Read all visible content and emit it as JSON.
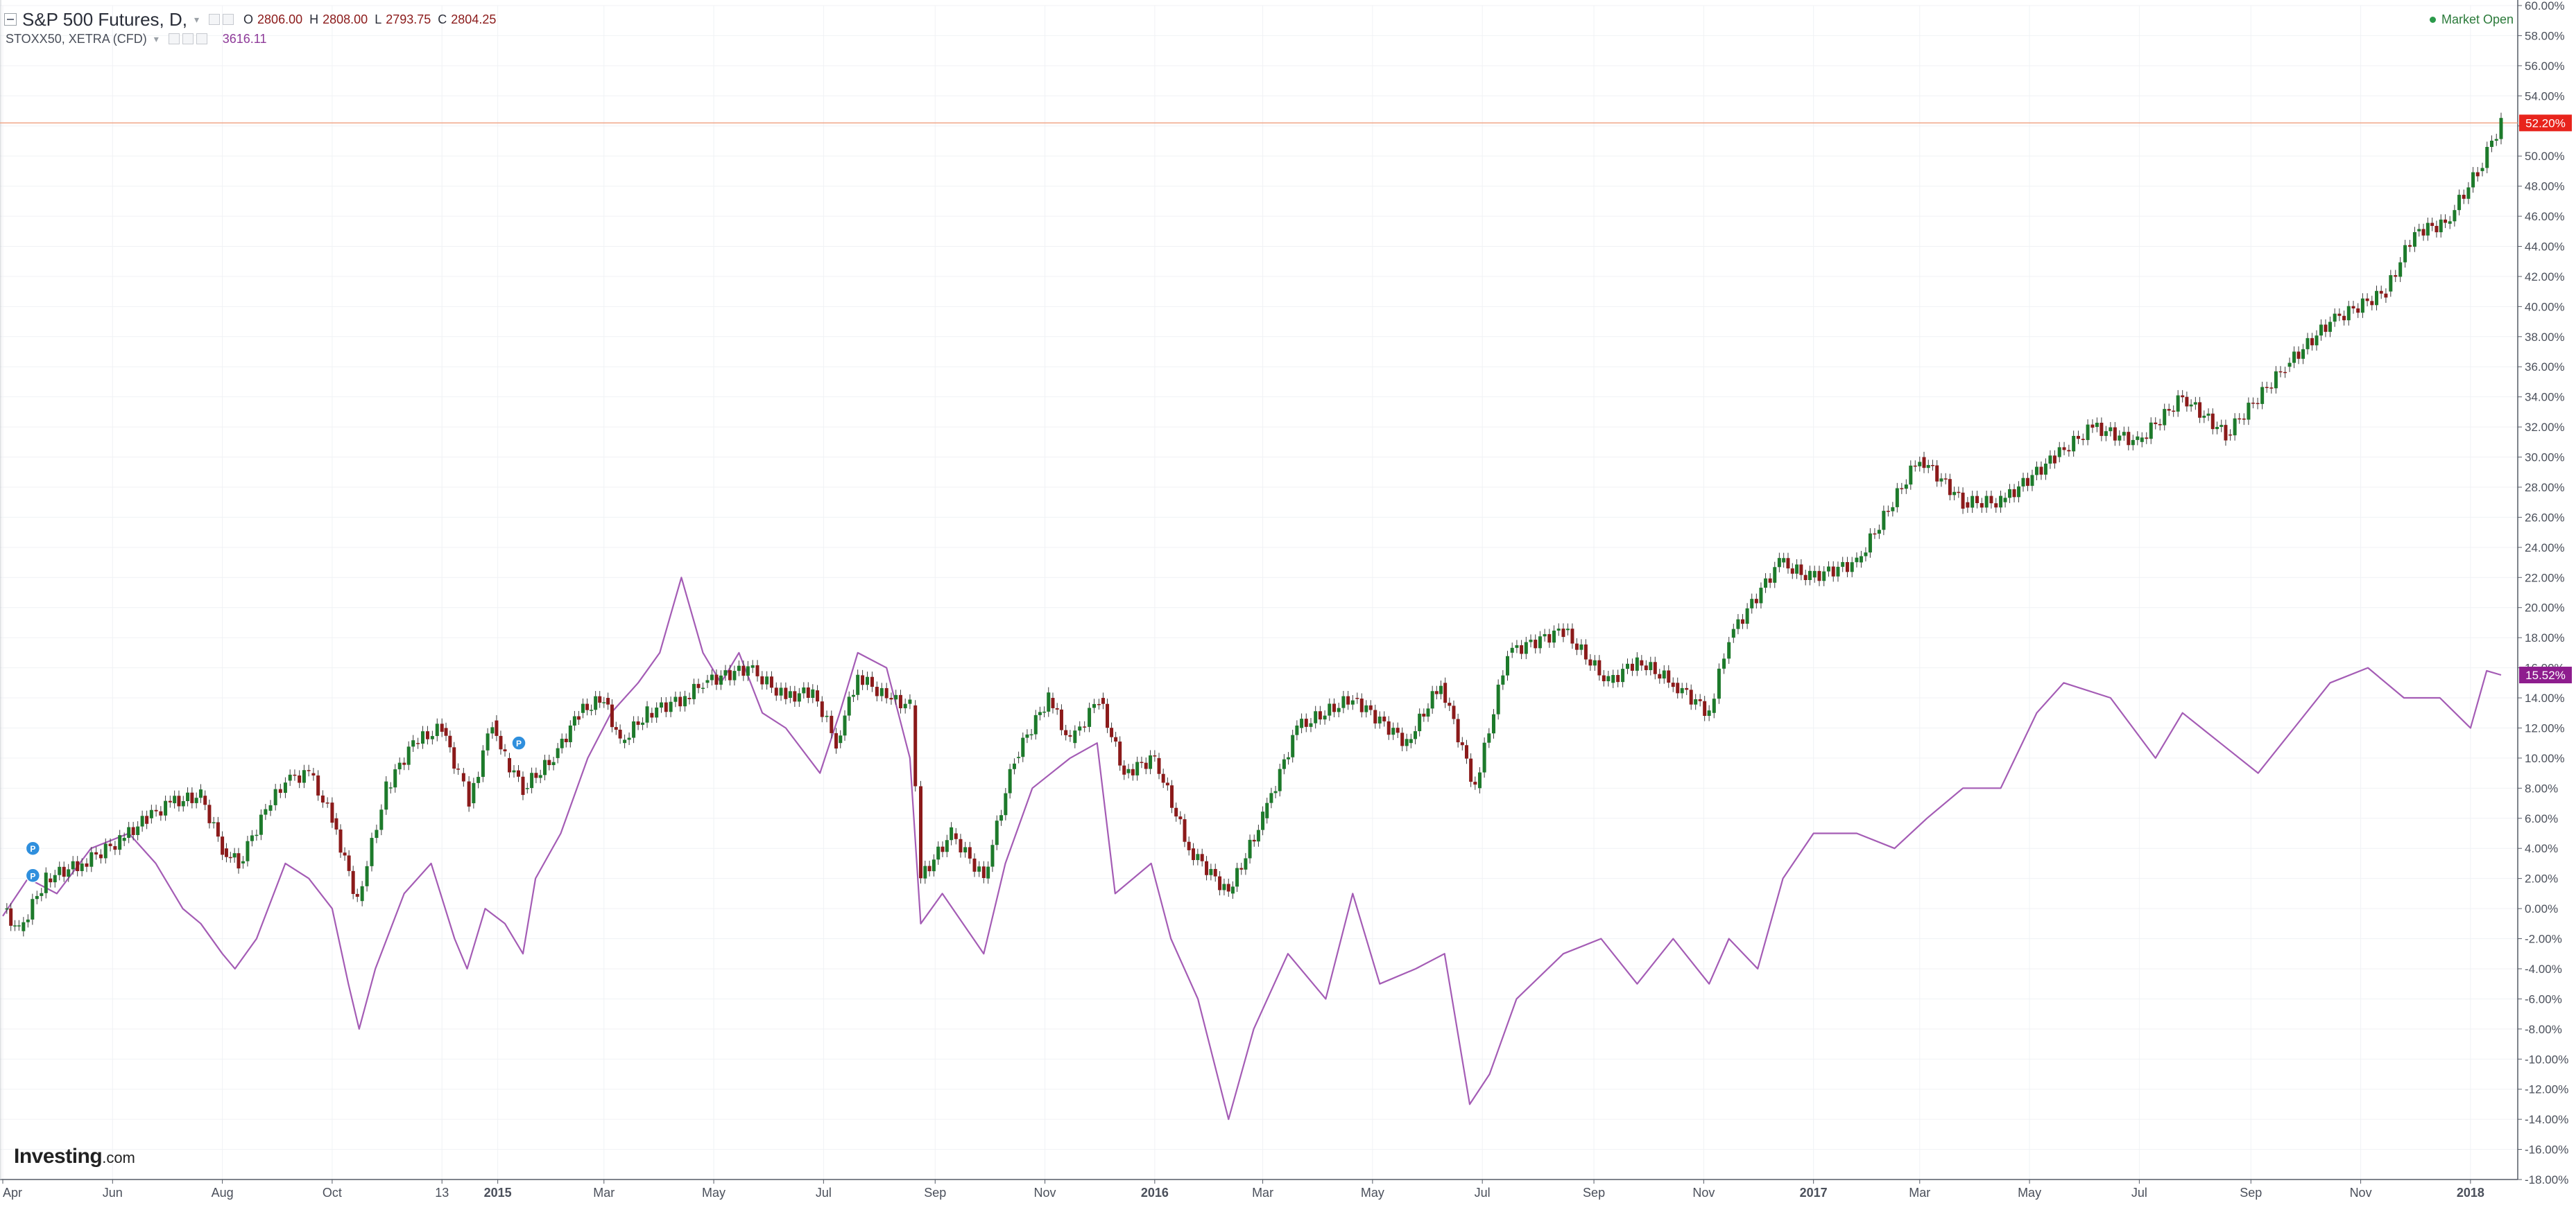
{
  "header": {
    "title": "S&P 500 Futures, D,",
    "ohlc": [
      {
        "label": "O",
        "value": "2806.00"
      },
      {
        "label": "H",
        "value": "2808.00"
      },
      {
        "label": "L",
        "value": "2793.75"
      },
      {
        "label": "C",
        "value": "2804.25"
      }
    ],
    "compare_title": "STOXX50, XETRA (CFD)",
    "compare_value": "3616.11",
    "market_status": "Market Open"
  },
  "logo": {
    "main": "Investing",
    "domain": ".com"
  },
  "colors": {
    "up": "#1d7a2b",
    "down": "#8b1a1a",
    "compare_line": "#a45cb5",
    "last_price_bg": "#e8241c",
    "compare_label_bg": "#8e1d8e",
    "price_line": "#f0a587",
    "grid": "#f0f2f5"
  },
  "chart_data": {
    "type": "line",
    "title": "S&P 500 Futures, D,",
    "y_axis": {
      "unit": "%",
      "range": [
        -18,
        60
      ],
      "ticks": [
        "60.00%",
        "58.00%",
        "56.00%",
        "54.00%",
        "52.00%",
        "50.00%",
        "48.00%",
        "46.00%",
        "44.00%",
        "42.00%",
        "40.00%",
        "38.00%",
        "36.00%",
        "34.00%",
        "32.00%",
        "30.00%",
        "28.00%",
        "26.00%",
        "24.00%",
        "22.00%",
        "20.00%",
        "18.00%",
        "16.00%",
        "14.00%",
        "12.00%",
        "10.00%",
        "8.00%",
        "6.00%",
        "4.00%",
        "2.00%",
        "0.00%",
        "-2.00%",
        "-4.00%",
        "-6.00%",
        "-8.00%",
        "-10.00%",
        "-12.00%",
        "-14.00%",
        "-16.00%",
        "-18.00%"
      ]
    },
    "x_axis": {
      "range": [
        "2014-04-01",
        "2018-01-18"
      ],
      "ticks": [
        {
          "label": "Apr",
          "date": "2014-04-01",
          "bold": false
        },
        {
          "label": "Jun",
          "date": "2014-06-01",
          "bold": false
        },
        {
          "label": "Aug",
          "date": "2014-08-01",
          "bold": false
        },
        {
          "label": "Oct",
          "date": "2014-10-01",
          "bold": false
        },
        {
          "label": "13",
          "date": "2014-12-01",
          "bold": false
        },
        {
          "label": "2015",
          "date": "2015-01-01",
          "bold": true
        },
        {
          "label": "Mar",
          "date": "2015-03-01",
          "bold": false
        },
        {
          "label": "May",
          "date": "2015-05-01",
          "bold": false
        },
        {
          "label": "Jul",
          "date": "2015-07-01",
          "bold": false
        },
        {
          "label": "Sep",
          "date": "2015-09-01",
          "bold": false
        },
        {
          "label": "Nov",
          "date": "2015-11-01",
          "bold": false
        },
        {
          "label": "2016",
          "date": "2016-01-01",
          "bold": true
        },
        {
          "label": "Mar",
          "date": "2016-03-01",
          "bold": false
        },
        {
          "label": "May",
          "date": "2016-05-01",
          "bold": false
        },
        {
          "label": "Jul",
          "date": "2016-07-01",
          "bold": false
        },
        {
          "label": "Sep",
          "date": "2016-09-01",
          "bold": false
        },
        {
          "label": "Nov",
          "date": "2016-11-01",
          "bold": false
        },
        {
          "label": "2017",
          "date": "2017-01-01",
          "bold": true
        },
        {
          "label": "Mar",
          "date": "2017-03-01",
          "bold": false
        },
        {
          "label": "May",
          "date": "2017-05-01",
          "bold": false
        },
        {
          "label": "Jul",
          "date": "2017-07-01",
          "bold": false
        },
        {
          "label": "Sep",
          "date": "2017-09-01",
          "bold": false
        },
        {
          "label": "Nov",
          "date": "2017-11-01",
          "bold": false
        },
        {
          "label": "2018",
          "date": "2018-01-01",
          "bold": true
        }
      ]
    },
    "last_value_label": "52.20%",
    "last_value": 52.2,
    "compare_value_label": "15.52%",
    "compare_last_value": 15.52,
    "event_markers": [
      {
        "label": "P",
        "date": "2014-04-10",
        "y": 4.0
      },
      {
        "label": "P",
        "date": "2014-04-10",
        "y": 2.2
      },
      {
        "label": "P",
        "date": "2015-01-05",
        "y": 11.0
      }
    ],
    "series": [
      {
        "name": "S&P 500 Futures",
        "style": "candlestick",
        "points": [
          [
            "2014-04-01",
            0
          ],
          [
            "2014-04-10",
            -1.5
          ],
          [
            "2014-04-25",
            2
          ],
          [
            "2014-05-15",
            3
          ],
          [
            "2014-06-05",
            4.5
          ],
          [
            "2014-06-20",
            6
          ],
          [
            "2014-07-03",
            7
          ],
          [
            "2014-07-20",
            7.5
          ],
          [
            "2014-08-01",
            4
          ],
          [
            "2014-08-10",
            3
          ],
          [
            "2014-08-25",
            6.5
          ],
          [
            "2014-09-05",
            8.5
          ],
          [
            "2014-09-18",
            9
          ],
          [
            "2014-10-01",
            6
          ],
          [
            "2014-10-15",
            0.5
          ],
          [
            "2014-10-31",
            8
          ],
          [
            "2014-11-15",
            11
          ],
          [
            "2014-12-01",
            12
          ],
          [
            "2014-12-10",
            9
          ],
          [
            "2014-12-16",
            7
          ],
          [
            "2014-12-29",
            12.5
          ],
          [
            "2015-01-05",
            10
          ],
          [
            "2015-01-15",
            8
          ],
          [
            "2015-02-01",
            10
          ],
          [
            "2015-02-15",
            13
          ],
          [
            "2015-03-01",
            14
          ],
          [
            "2015-03-10",
            11
          ],
          [
            "2015-03-25",
            13
          ],
          [
            "2015-04-15",
            14
          ],
          [
            "2015-04-25",
            15
          ],
          [
            "2015-05-20",
            16
          ],
          [
            "2015-06-10",
            14
          ],
          [
            "2015-06-25",
            14.5
          ],
          [
            "2015-07-08",
            11
          ],
          [
            "2015-07-20",
            15.5
          ],
          [
            "2015-08-05",
            14
          ],
          [
            "2015-08-18",
            13.5
          ],
          [
            "2015-08-24",
            2
          ],
          [
            "2015-09-10",
            5
          ],
          [
            "2015-09-28",
            2
          ],
          [
            "2015-10-15",
            10
          ],
          [
            "2015-11-03",
            14
          ],
          [
            "2015-11-15",
            11
          ],
          [
            "2015-12-01",
            14
          ],
          [
            "2015-12-15",
            9
          ],
          [
            "2016-01-01",
            10
          ],
          [
            "2016-01-20",
            4
          ],
          [
            "2016-02-11",
            1
          ],
          [
            "2016-03-01",
            6
          ],
          [
            "2016-03-20",
            12
          ],
          [
            "2016-04-20",
            14
          ],
          [
            "2016-05-20",
            11
          ],
          [
            "2016-06-08",
            15
          ],
          [
            "2016-06-27",
            8
          ],
          [
            "2016-07-15",
            17
          ],
          [
            "2016-08-15",
            18.5
          ],
          [
            "2016-09-09",
            15
          ],
          [
            "2016-09-25",
            16.5
          ],
          [
            "2016-10-15",
            15
          ],
          [
            "2016-11-04",
            13
          ],
          [
            "2016-11-15",
            18
          ],
          [
            "2016-12-13",
            23
          ],
          [
            "2016-12-30",
            22
          ],
          [
            "2017-01-25",
            23
          ],
          [
            "2017-03-01",
            30
          ],
          [
            "2017-03-25",
            27
          ],
          [
            "2017-04-15",
            27
          ],
          [
            "2017-05-15",
            30
          ],
          [
            "2017-06-05",
            32
          ],
          [
            "2017-06-30",
            31
          ],
          [
            "2017-07-25",
            34
          ],
          [
            "2017-08-18",
            31.5
          ],
          [
            "2017-09-20",
            36
          ],
          [
            "2017-10-15",
            39
          ],
          [
            "2017-11-15",
            41
          ],
          [
            "2017-12-01",
            45
          ],
          [
            "2017-12-18",
            45.5
          ],
          [
            "2018-01-05",
            49
          ],
          [
            "2018-01-18",
            52.2
          ]
        ]
      },
      {
        "name": "STOXX50, XETRA (CFD)",
        "style": "line",
        "points": [
          [
            "2014-04-01",
            -0.5
          ],
          [
            "2014-04-15",
            2
          ],
          [
            "2014-05-01",
            1
          ],
          [
            "2014-05-20",
            4
          ],
          [
            "2014-06-10",
            5
          ],
          [
            "2014-06-25",
            3
          ],
          [
            "2014-07-10",
            0
          ],
          [
            "2014-07-20",
            -1
          ],
          [
            "2014-08-01",
            -3
          ],
          [
            "2014-08-08",
            -4
          ],
          [
            "2014-08-20",
            -2
          ],
          [
            "2014-09-05",
            3
          ],
          [
            "2014-09-18",
            2
          ],
          [
            "2014-10-01",
            0
          ],
          [
            "2014-10-10",
            -5
          ],
          [
            "2014-10-16",
            -8
          ],
          [
            "2014-10-25",
            -4
          ],
          [
            "2014-11-10",
            1
          ],
          [
            "2014-11-25",
            3
          ],
          [
            "2014-12-08",
            -2
          ],
          [
            "2014-12-15",
            -4
          ],
          [
            "2014-12-25",
            0
          ],
          [
            "2015-01-05",
            -1
          ],
          [
            "2015-01-15",
            -3
          ],
          [
            "2015-01-22",
            2
          ],
          [
            "2015-02-05",
            5
          ],
          [
            "2015-02-20",
            10
          ],
          [
            "2015-03-05",
            13
          ],
          [
            "2015-03-20",
            15
          ],
          [
            "2015-04-01",
            17
          ],
          [
            "2015-04-13",
            22
          ],
          [
            "2015-04-25",
            17
          ],
          [
            "2015-05-05",
            15
          ],
          [
            "2015-05-15",
            17
          ],
          [
            "2015-05-28",
            13
          ],
          [
            "2015-06-10",
            12
          ],
          [
            "2015-06-29",
            9
          ],
          [
            "2015-07-10",
            13
          ],
          [
            "2015-07-20",
            17
          ],
          [
            "2015-08-05",
            16
          ],
          [
            "2015-08-18",
            10
          ],
          [
            "2015-08-24",
            -1
          ],
          [
            "2015-09-05",
            1
          ],
          [
            "2015-09-28",
            -3
          ],
          [
            "2015-10-10",
            3
          ],
          [
            "2015-10-25",
            8
          ],
          [
            "2015-11-15",
            10
          ],
          [
            "2015-11-30",
            11
          ],
          [
            "2015-12-10",
            1
          ],
          [
            "2015-12-30",
            3
          ],
          [
            "2016-01-10",
            -2
          ],
          [
            "2016-01-25",
            -6
          ],
          [
            "2016-02-11",
            -14
          ],
          [
            "2016-02-25",
            -8
          ],
          [
            "2016-03-15",
            -3
          ],
          [
            "2016-04-05",
            -6
          ],
          [
            "2016-04-20",
            1
          ],
          [
            "2016-05-05",
            -5
          ],
          [
            "2016-05-25",
            -4
          ],
          [
            "2016-06-10",
            -3
          ],
          [
            "2016-06-24",
            -13
          ],
          [
            "2016-07-05",
            -11
          ],
          [
            "2016-07-20",
            -6
          ],
          [
            "2016-08-15",
            -3
          ],
          [
            "2016-09-05",
            -2
          ],
          [
            "2016-09-25",
            -5
          ],
          [
            "2016-10-15",
            -2
          ],
          [
            "2016-11-04",
            -5
          ],
          [
            "2016-11-15",
            -2
          ],
          [
            "2016-12-01",
            -4
          ],
          [
            "2016-12-15",
            2
          ],
          [
            "2017-01-01",
            5
          ],
          [
            "2017-01-25",
            5
          ],
          [
            "2017-02-15",
            4
          ],
          [
            "2017-03-05",
            6
          ],
          [
            "2017-03-25",
            8
          ],
          [
            "2017-04-15",
            8
          ],
          [
            "2017-05-05",
            13
          ],
          [
            "2017-05-20",
            15
          ],
          [
            "2017-06-15",
            14
          ],
          [
            "2017-07-10",
            10
          ],
          [
            "2017-07-25",
            13
          ],
          [
            "2017-08-15",
            11
          ],
          [
            "2017-09-05",
            9
          ],
          [
            "2017-09-25",
            12
          ],
          [
            "2017-10-15",
            15
          ],
          [
            "2017-11-05",
            16
          ],
          [
            "2017-11-25",
            14
          ],
          [
            "2017-12-15",
            14
          ],
          [
            "2018-01-01",
            12
          ],
          [
            "2018-01-10",
            15.8
          ],
          [
            "2018-01-18",
            15.52
          ]
        ]
      }
    ]
  }
}
